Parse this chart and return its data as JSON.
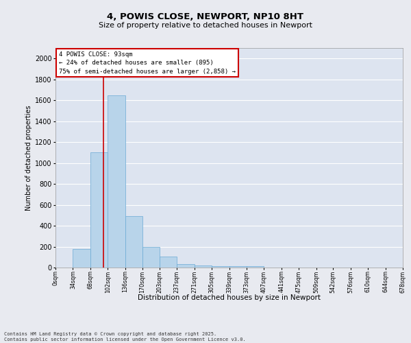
{
  "title": "4, POWIS CLOSE, NEWPORT, NP10 8HT",
  "subtitle": "Size of property relative to detached houses in Newport",
  "xlabel": "Distribution of detached houses by size in Newport",
  "ylabel": "Number of detached properties",
  "bar_edges": [
    0,
    34,
    68,
    102,
    136,
    170,
    203,
    237,
    271,
    305,
    339,
    373,
    407,
    441,
    475,
    509,
    542,
    576,
    610,
    644,
    678
  ],
  "bar_heights": [
    0,
    175,
    1100,
    1650,
    490,
    200,
    105,
    35,
    22,
    15,
    10,
    12,
    0,
    0,
    0,
    0,
    0,
    0,
    0,
    0
  ],
  "bar_color": "#b8d4ea",
  "bar_edgecolor": "#6aaad4",
  "background_color": "#dde4f0",
  "grid_color": "#ffffff",
  "fig_background": "#e8eaf0",
  "property_size": 93,
  "red_line_color": "#cc0000",
  "annotation_text": "4 POWIS CLOSE: 93sqm\n← 24% of detached houses are smaller (895)\n75% of semi-detached houses are larger (2,858) →",
  "annotation_box_edgecolor": "#cc0000",
  "ylim": [
    0,
    2100
  ],
  "yticks": [
    0,
    200,
    400,
    600,
    800,
    1000,
    1200,
    1400,
    1600,
    1800,
    2000
  ],
  "footer_line1": "Contains HM Land Registry data © Crown copyright and database right 2025.",
  "footer_line2": "Contains public sector information licensed under the Open Government Licence v3.0.",
  "tick_labels": [
    "0sqm",
    "34sqm",
    "68sqm",
    "102sqm",
    "136sqm",
    "170sqm",
    "203sqm",
    "237sqm",
    "271sqm",
    "305sqm",
    "339sqm",
    "373sqm",
    "407sqm",
    "441sqm",
    "475sqm",
    "509sqm",
    "542sqm",
    "576sqm",
    "610sqm",
    "644sqm",
    "678sqm"
  ]
}
